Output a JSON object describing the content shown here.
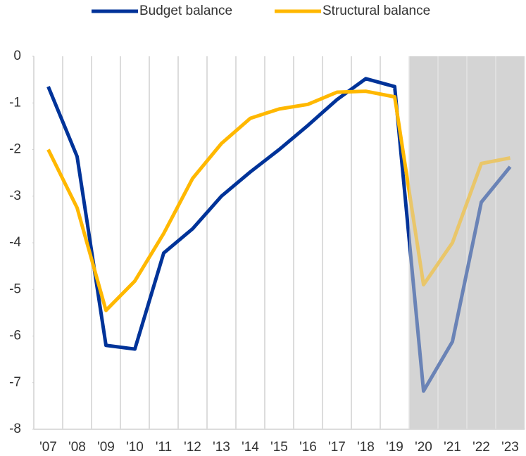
{
  "chart_data": {
    "type": "line",
    "categories": [
      "'07",
      "'08",
      "'09",
      "'10",
      "'11",
      "'12",
      "'13",
      "'14",
      "'15",
      "'16",
      "'17",
      "'18",
      "'19",
      "'20",
      "'21",
      "'22",
      "'23"
    ],
    "series": [
      {
        "name": "Budget balance",
        "color": "#003399",
        "values": [
          -0.65,
          -2.15,
          -6.2,
          -6.28,
          -4.22,
          -3.7,
          -3.0,
          -2.48,
          -2.0,
          -1.48,
          -0.93,
          -0.48,
          -0.65,
          -7.18,
          -6.12,
          -3.13,
          -2.37
        ]
      },
      {
        "name": "Structural balance",
        "color": "#ffb800",
        "values": [
          -2.0,
          -3.25,
          -5.45,
          -4.82,
          -3.8,
          -2.62,
          -1.87,
          -1.33,
          -1.13,
          -1.03,
          -0.77,
          -0.75,
          -0.87,
          -4.9,
          -4.0,
          -2.3,
          -2.18
        ]
      }
    ],
    "ylim": [
      -8,
      0
    ],
    "yticks": [
      0,
      -1,
      -2,
      -3,
      -4,
      -5,
      -6,
      -7,
      -8
    ],
    "shaded_from": 13,
    "grid": true,
    "legend": "top"
  }
}
